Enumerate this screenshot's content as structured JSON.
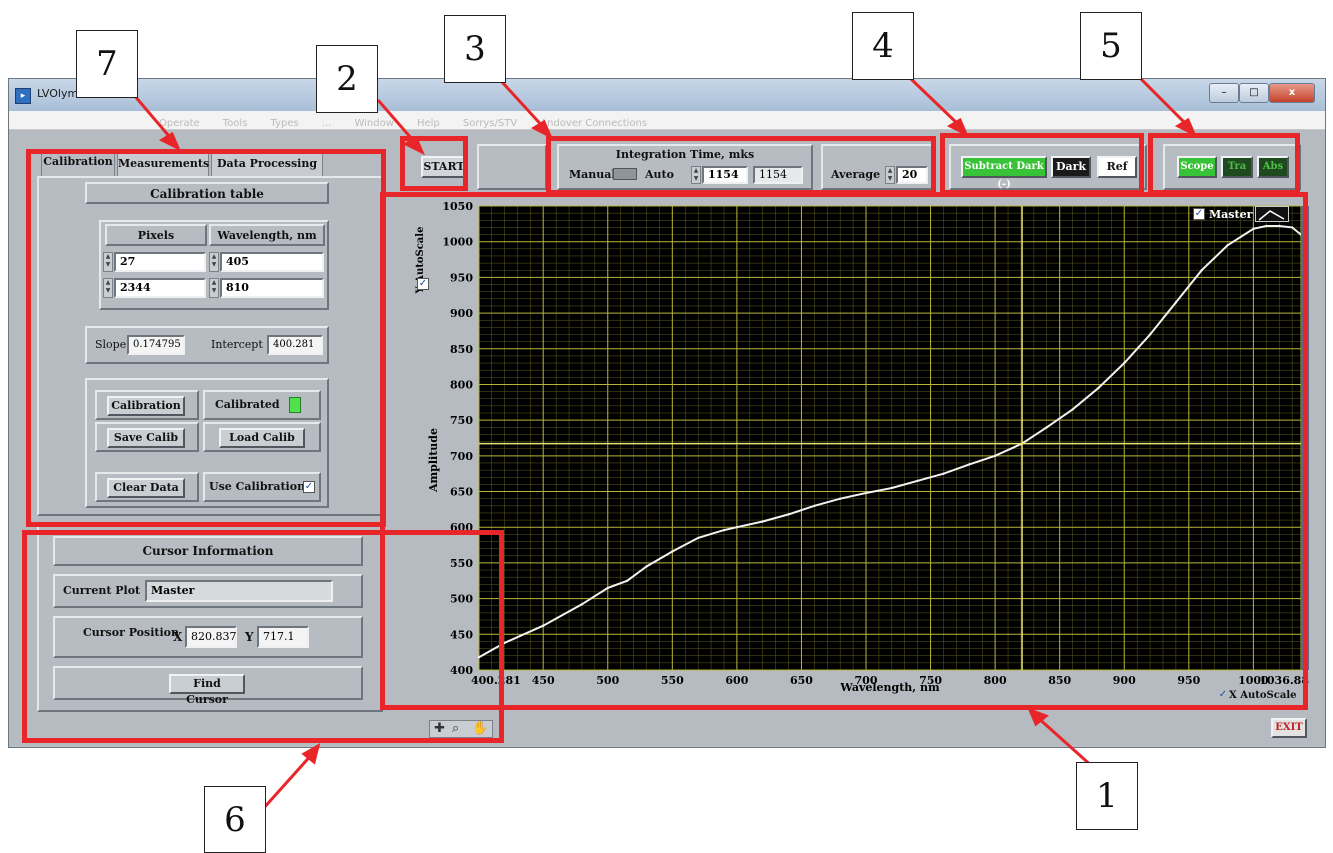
{
  "window": {
    "title": "LVOlym...l.vi",
    "menu": [
      "Operate",
      "Tools",
      "Types",
      "...",
      "Window",
      "Help",
      "Sorrys/STV",
      "Andover Connections"
    ],
    "buttons": {
      "minimize": "–",
      "maximize": "□",
      "close": "x"
    }
  },
  "callouts": {
    "c1": "1",
    "c2": "2",
    "c3": "3",
    "c4": "4",
    "c5": "5",
    "c6": "6",
    "c7": "7"
  },
  "tabs": [
    "Calibration",
    "Measurements",
    "Data Processing"
  ],
  "calibration": {
    "table_title": "Calibration table",
    "col_pixels": "Pixels",
    "col_wavelength": "Wavelength, nm",
    "rows": [
      {
        "pixels": "27",
        "wavelength": "405"
      },
      {
        "pixels": "2344",
        "wavelength": "810"
      }
    ],
    "slope_label": "Slope",
    "slope_value": "0.174795",
    "intercept_label": "Intercept",
    "intercept_value": "400.281",
    "calibration_button": "Calibration",
    "calibrated_label": "Calibrated",
    "save_button": "Save Calib",
    "load_button": "Load Calib",
    "clear_button": "Clear Data",
    "use_calibration_label": "Use Calibration",
    "use_calibration_checked": "✓"
  },
  "cursor_info": {
    "title": "Cursor Information",
    "current_plot_label": "Current Plot",
    "current_plot_value": "Master",
    "position_label": "Cursor Position",
    "x_label": "X",
    "x_value": "820.837",
    "y_label": "Y",
    "y_value": "717.1",
    "find_button": "Find Cursor"
  },
  "toolbar": {
    "start_button": "START",
    "integration_title": "Integration Time, mks",
    "manual_label": "Manual",
    "auto_label": "Auto",
    "integration_value": "1154",
    "integration_readout": "1154",
    "average_label": "Average",
    "average_value": "20",
    "subtract_dark": "Subtract Dark (-)",
    "dark": "Dark",
    "ref": "Ref",
    "scope": "Scope",
    "tra": "Tra",
    "abs": "Abs",
    "exit": "EXIT"
  },
  "plot": {
    "legend_master": "Master",
    "y_autoscale": "Y AutoScale",
    "x_autoscale": "X AutoScale",
    "y_autoscale_checked": "✓",
    "x_autoscale_checked": "✓",
    "legend_checked": "✓"
  },
  "colors": {
    "highlight": "#e8262a",
    "plot_bg": "#000000",
    "grid": "#b5b53a",
    "trace": "#f2f2f2",
    "cursor": "#e6e674",
    "led_green": "#4fe24a"
  },
  "chart_data": {
    "type": "line",
    "title": "",
    "xlabel": "Wavelength, nm",
    "ylabel": "Amplitude",
    "xlim": [
      400.281,
      1036.88
    ],
    "ylim": [
      400,
      1050
    ],
    "x_ticks": [
      "400.281",
      "450",
      "500",
      "550",
      "600",
      "650",
      "700",
      "750",
      "800",
      "850",
      "900",
      "950",
      "1000",
      "1036.88"
    ],
    "y_ticks": [
      "400",
      "450",
      "500",
      "550",
      "600",
      "650",
      "700",
      "750",
      "800",
      "850",
      "900",
      "950",
      "1000",
      "1050"
    ],
    "grid": true,
    "legend": "top-right",
    "series": [
      {
        "name": "Master",
        "x": [
          400.281,
          420,
          450,
          480,
          500,
          515,
          530,
          550,
          570,
          590,
          600,
          620,
          640,
          660,
          680,
          700,
          720,
          740,
          760,
          780,
          800,
          820.837,
          840,
          860,
          880,
          900,
          920,
          940,
          960,
          980,
          1000,
          1010,
          1020,
          1030,
          1036.88
        ],
        "y": [
          418,
          438,
          462,
          492,
          515,
          525,
          545,
          566,
          585,
          596,
          600,
          608,
          618,
          630,
          640,
          648,
          655,
          665,
          675,
          688,
          700,
          717.1,
          740,
          765,
          795,
          830,
          870,
          915,
          960,
          995,
          1018,
          1022,
          1022,
          1020,
          1010
        ]
      }
    ],
    "cursor": {
      "x": 820.837,
      "y": 717.1
    }
  }
}
